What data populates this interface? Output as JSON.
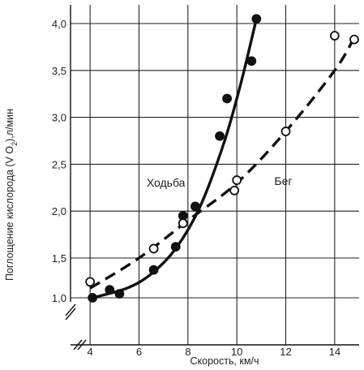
{
  "chart_data": {
    "type": "scatter",
    "xlabel": "Скорость, км/ч",
    "ylabel_main": "Поглощение кислорода (V O",
    "ylabel_sub": "2",
    "ylabel_tail": "),л/мин",
    "xlim": [
      3.2,
      15
    ],
    "ylim_lower": [
      1.0,
      1.5
    ],
    "ylim_upper": [
      1.5,
      4.2
    ],
    "axis_break": true,
    "grid": true,
    "x_ticks": [
      4,
      6,
      8,
      10,
      12,
      14
    ],
    "x_tick_labels": [
      "4",
      "6",
      "8",
      "10",
      "12",
      "14"
    ],
    "y_ticks": [
      1.0,
      1.5,
      2.0,
      2.5,
      3.0,
      3.5,
      4.0
    ],
    "y_tick_labels": [
      "1,0",
      "1,5",
      "2,0",
      "2,5",
      "3,0",
      "3,5",
      "4,0"
    ],
    "annotations": [
      {
        "text": "Ходьба",
        "x": 7.1,
        "y": 2.26
      },
      {
        "text": "Бег",
        "x": 11.9,
        "y": 2.28
      }
    ],
    "series": [
      {
        "name": "Ходьба",
        "marker": "filled-circle",
        "line": "solid",
        "points": [
          {
            "x": 4.1,
            "y": 1.0
          },
          {
            "x": 4.8,
            "y": 1.1
          },
          {
            "x": 5.2,
            "y": 1.05
          },
          {
            "x": 6.6,
            "y": 1.35
          },
          {
            "x": 7.5,
            "y": 1.62
          },
          {
            "x": 7.8,
            "y": 1.95
          },
          {
            "x": 8.3,
            "y": 2.05
          },
          {
            "x": 9.3,
            "y": 2.8
          },
          {
            "x": 9.6,
            "y": 3.2
          },
          {
            "x": 10.6,
            "y": 3.6
          },
          {
            "x": 10.8,
            "y": 4.05
          }
        ],
        "curve": [
          {
            "x": 4.1,
            "y": 1.0
          },
          {
            "x": 5.5,
            "y": 1.12
          },
          {
            "x": 6.5,
            "y": 1.3
          },
          {
            "x": 7.5,
            "y": 1.6
          },
          {
            "x": 8.5,
            "y": 2.05
          },
          {
            "x": 9.5,
            "y": 2.75
          },
          {
            "x": 10.2,
            "y": 3.4
          },
          {
            "x": 10.8,
            "y": 4.05
          }
        ]
      },
      {
        "name": "Бег",
        "marker": "open-circle",
        "line": "dashed",
        "points": [
          {
            "x": 4.0,
            "y": 1.2
          },
          {
            "x": 6.6,
            "y": 1.6
          },
          {
            "x": 7.8,
            "y": 1.87
          },
          {
            "x": 9.9,
            "y": 2.22
          },
          {
            "x": 10.0,
            "y": 2.33
          },
          {
            "x": 12.0,
            "y": 2.85
          },
          {
            "x": 14.0,
            "y": 3.87
          },
          {
            "x": 14.8,
            "y": 3.83
          }
        ],
        "curve": [
          {
            "x": 4.0,
            "y": 1.12
          },
          {
            "x": 6.0,
            "y": 1.5
          },
          {
            "x": 8.0,
            "y": 1.9
          },
          {
            "x": 10.0,
            "y": 2.3
          },
          {
            "x": 12.0,
            "y": 2.85
          },
          {
            "x": 14.0,
            "y": 3.5
          },
          {
            "x": 14.8,
            "y": 3.85
          }
        ]
      }
    ]
  }
}
